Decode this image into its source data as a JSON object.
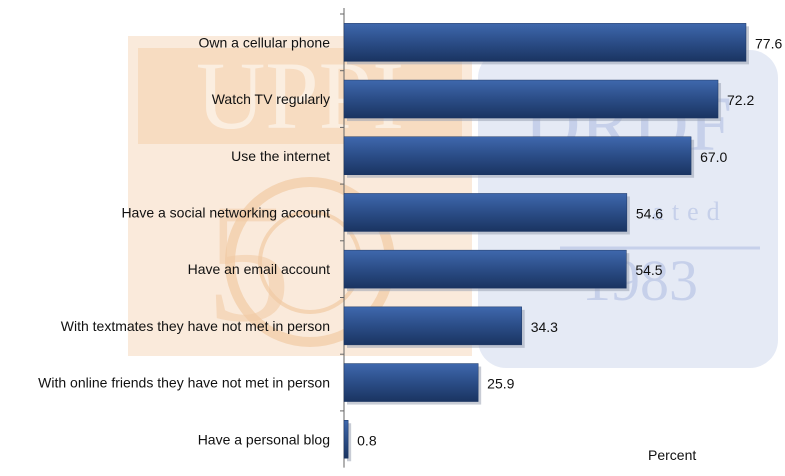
{
  "chart_data": {
    "type": "bar",
    "orientation": "horizontal",
    "categories": [
      "Own a cellular phone",
      "Watch TV regularly",
      "Use the internet",
      "Have a social networking account",
      "Have an email account",
      "With textmates they have not met in person",
      "With online friends they have not met in person",
      "Have a personal blog"
    ],
    "values": [
      77.6,
      72.2,
      67.0,
      54.6,
      54.5,
      34.3,
      25.9,
      0.8
    ],
    "value_labels": [
      "77.6",
      "72.2",
      "67.0",
      "54.6",
      "54.5",
      "34.3",
      "25.9",
      "0.8"
    ],
    "unit_label": "Percent",
    "xlim": [
      0,
      80
    ],
    "grid": false,
    "legend": "none",
    "bar_color": "#2b4d87"
  },
  "watermark": {
    "left_text": "UPPI",
    "right_text": "DRDF",
    "right_sub": "ated",
    "right_year": "1983",
    "left_color": "#f3c9a3",
    "right_color": "#c6d0ea"
  }
}
